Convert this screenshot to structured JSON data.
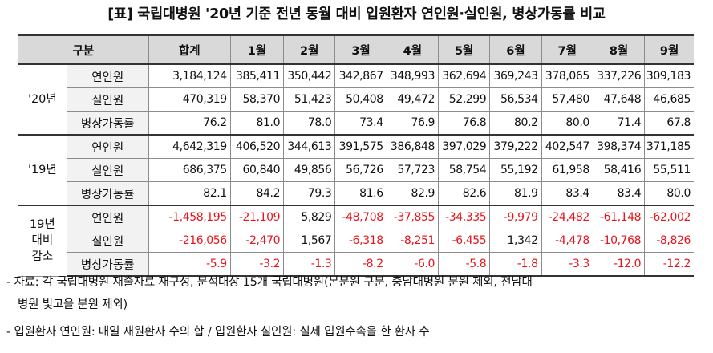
{
  "title": "[표] 국립대병원 '20년 기준 전년 동월 대비 입원환자 연인원·실인원, 병상가동률 비교",
  "header": {
    "group": "구분",
    "cols": [
      "합계",
      "1월",
      "2월",
      "3월",
      "4월",
      "5월",
      "6월",
      "7월",
      "8월",
      "9월"
    ]
  },
  "groups": [
    {
      "year": "'20년",
      "rows": [
        {
          "label": "연인원",
          "values": [
            "3,184,124",
            "385,411",
            "350,442",
            "342,867",
            "348,993",
            "362,694",
            "369,243",
            "378,065",
            "337,226",
            "309,183"
          ]
        },
        {
          "label": "실인원",
          "values": [
            "470,319",
            "58,370",
            "51,423",
            "50,408",
            "49,472",
            "52,299",
            "56,534",
            "57,480",
            "47,648",
            "46,685"
          ]
        },
        {
          "label": "병상가동률",
          "values": [
            "76.2",
            "81.0",
            "78.0",
            "73.4",
            "76.9",
            "76.8",
            "80.2",
            "80.0",
            "71.4",
            "67.8"
          ]
        }
      ]
    },
    {
      "year": "'19년",
      "rows": [
        {
          "label": "연인원",
          "values": [
            "4,642,319",
            "406,520",
            "344,613",
            "391,575",
            "386,848",
            "397,029",
            "379,222",
            "402,547",
            "398,374",
            "371,185"
          ]
        },
        {
          "label": "실인원",
          "values": [
            "686,375",
            "60,840",
            "49,856",
            "56,726",
            "57,723",
            "58,754",
            "55,192",
            "61,958",
            "58,416",
            "55,511"
          ]
        },
        {
          "label": "병상가동률",
          "values": [
            "82.1",
            "84.2",
            "79.3",
            "81.6",
            "82.9",
            "82.6",
            "81.9",
            "83.4",
            "83.4",
            "80.0"
          ]
        }
      ]
    },
    {
      "year_lines": [
        "19년",
        "대비",
        "감소"
      ],
      "rows": [
        {
          "label": "연인원",
          "values": [
            "-1,458,195",
            "-21,109",
            "5,829",
            "-48,708",
            "-37,855",
            "-34,335",
            "-9,979",
            "-24,482",
            "-61,148",
            "-62,002"
          ]
        },
        {
          "label": "실인원",
          "values": [
            "-216,056",
            "-2,470",
            "1,567",
            "-6,318",
            "-8,251",
            "-6,455",
            "1,342",
            "-4,478",
            "-10,768",
            "-8,826"
          ]
        },
        {
          "label": "병상가동률",
          "values": [
            "-5.9",
            "-3.2",
            "-1.3",
            "-8.2",
            "-6.0",
            "-5.8",
            "-1.8",
            "-3.3",
            "-12.0",
            "-12.2"
          ]
        }
      ]
    }
  ],
  "colors": {
    "negative": "#e8141b",
    "header_bg": "#d9d9d9",
    "label_bg": "#f2f2f2"
  },
  "notes": {
    "source_line1": "- 자료: 각 국립대병원 재출자료 재구성, 분석대상 15개 국립대병원(본분원 구분, 충남대병원 분원 제외, 전남대",
    "source_line2": "병원 빛고을 분원 제외)",
    "definition": "- 입원환자 연인원: 매일 재원환자 수의 합 / 입원환자 실인원: 실제 입원수속을 한 환자 수"
  }
}
